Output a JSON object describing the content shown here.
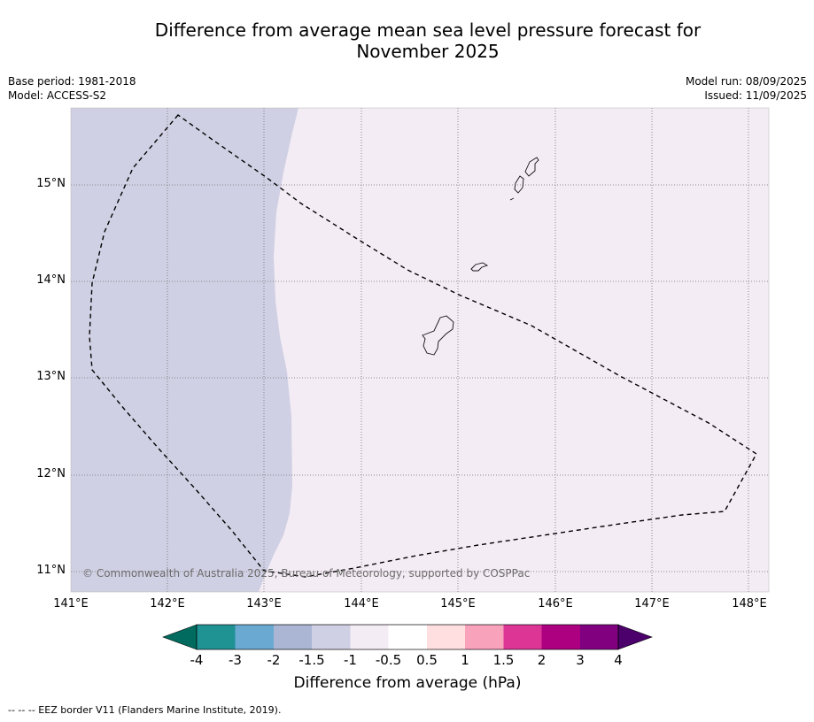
{
  "title": {
    "line1": "Difference from average mean sea level pressure forecast for",
    "line2": "November 2025"
  },
  "meta": {
    "base_period": "Base period: 1981-2018",
    "model": "Model: ACCESS-S2",
    "model_run": "Model run: 08/09/2025",
    "issued": "Issued: 11/09/2025"
  },
  "map": {
    "latitude_labels": [
      "15°N",
      "14°N",
      "13°N",
      "12°N",
      "11°N"
    ],
    "longitude_labels": [
      "141°E",
      "142°E",
      "143°E",
      "144°E",
      "145°E",
      "146°E",
      "147°E",
      "148°E"
    ],
    "shading": {
      "west_category": "-1.5 to -1",
      "east_category": "-1 to -0.5"
    },
    "copyright": "© Commonwealth of Australia 2025, Bureau of Meteorology, supported by COSPPac"
  },
  "colorbar": {
    "ticks": [
      "-4",
      "-3",
      "-2",
      "-1.5",
      "-1",
      "-0.5",
      "0.5",
      "1",
      "1.5",
      "2",
      "3",
      "4"
    ],
    "colors": [
      "#006b5e",
      "#1f9294",
      "#6aa9d2",
      "#aab6d4",
      "#d0d0e4",
      "#f4ecf4",
      "#ffffff",
      "#ffdfe0",
      "#f9a2bc",
      "#dc3596",
      "#ad0081",
      "#800080",
      "#4b006b"
    ],
    "label": "Difference from average (hPa)"
  },
  "footnote": "--  --  -- EEZ border V11 (Flanders Marine Institute, 2019)."
}
